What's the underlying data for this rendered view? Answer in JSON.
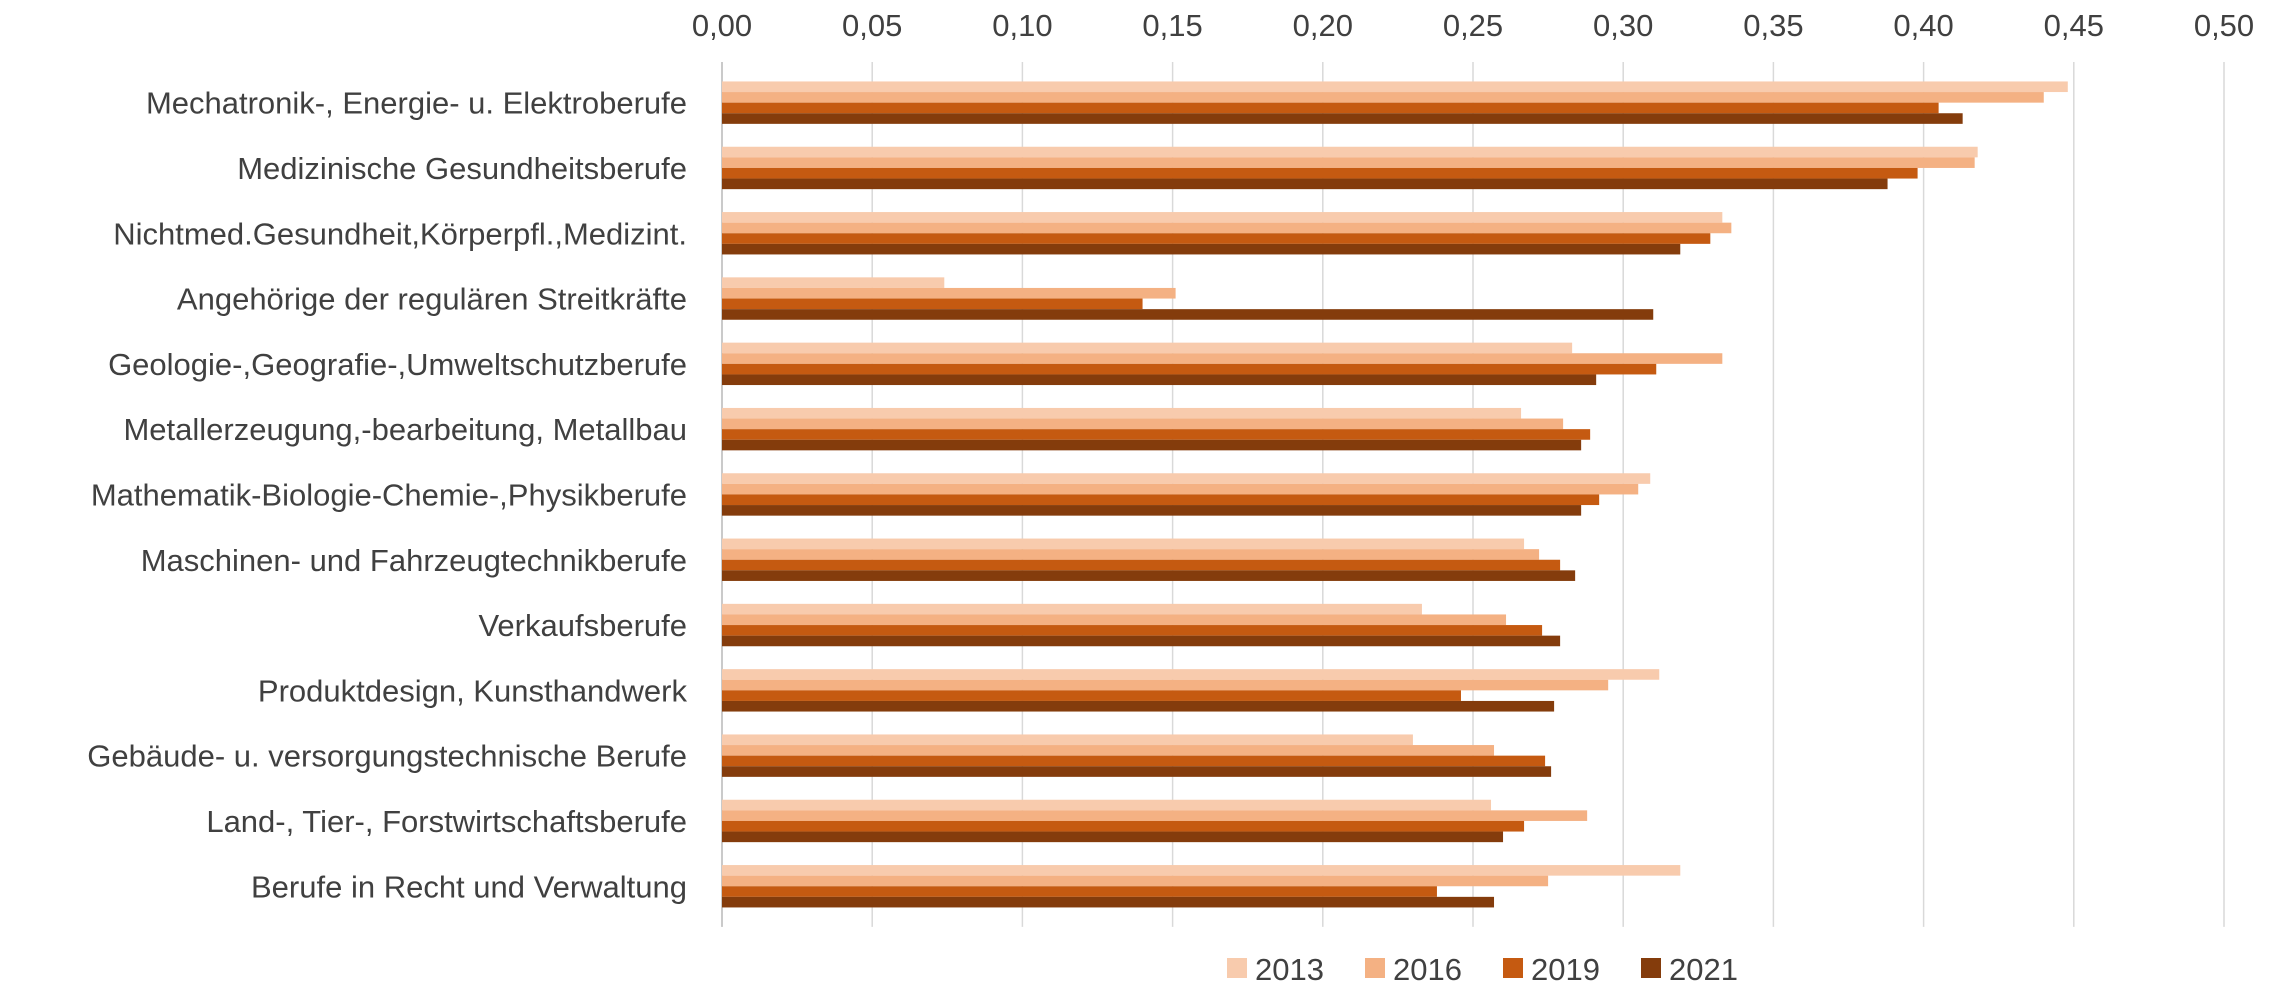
{
  "chart_data": {
    "type": "bar",
    "orientation": "horizontal",
    "title": "",
    "xlabel": "",
    "ylabel": "",
    "xlim": [
      0,
      0.5
    ],
    "x_ticks": [
      "0,00",
      "0,05",
      "0,10",
      "0,15",
      "0,20",
      "0,25",
      "0,30",
      "0,35",
      "0,40",
      "0,45",
      "0,50"
    ],
    "x_axis_position": "top",
    "grid": true,
    "legend_position": "bottom",
    "categories": [
      "Mechatronik-, Energie- u. Elektroberufe",
      "Medizinische Gesundheitsberufe",
      "Nichtmed.Gesundheit,Körperpfl.,Medizint.",
      "Angehörige der regulären Streitkräfte",
      "Geologie-,Geografie-,Umweltschutzberufe",
      "Metallerzeugung,-bearbeitung, Metallbau",
      "Mathematik-Biologie-Chemie-,Physikberufe",
      "Maschinen- und Fahrzeugtechnikberufe",
      "Verkaufsberufe",
      "Produktdesign, Kunsthandwerk",
      "Gebäude- u. versorgungstechnische Berufe",
      "Land-, Tier-, Forstwirtschaftsberufe",
      "Berufe in Recht und Verwaltung"
    ],
    "series": [
      {
        "name": "2013",
        "color": "#F8CBAD",
        "values": [
          0.448,
          0.418,
          0.333,
          0.074,
          0.283,
          0.266,
          0.309,
          0.267,
          0.233,
          0.312,
          0.23,
          0.256,
          0.319
        ]
      },
      {
        "name": "2016",
        "color": "#F4B183",
        "values": [
          0.44,
          0.417,
          0.336,
          0.151,
          0.333,
          0.28,
          0.305,
          0.272,
          0.261,
          0.295,
          0.257,
          0.288,
          0.275
        ]
      },
      {
        "name": "2019",
        "color": "#C55A11",
        "values": [
          0.405,
          0.398,
          0.329,
          0.14,
          0.311,
          0.289,
          0.292,
          0.279,
          0.273,
          0.246,
          0.274,
          0.267,
          0.238
        ]
      },
      {
        "name": "2021",
        "color": "#843C0C",
        "values": [
          0.413,
          0.388,
          0.319,
          0.31,
          0.291,
          0.286,
          0.286,
          0.284,
          0.279,
          0.277,
          0.276,
          0.26,
          0.257
        ]
      }
    ]
  }
}
